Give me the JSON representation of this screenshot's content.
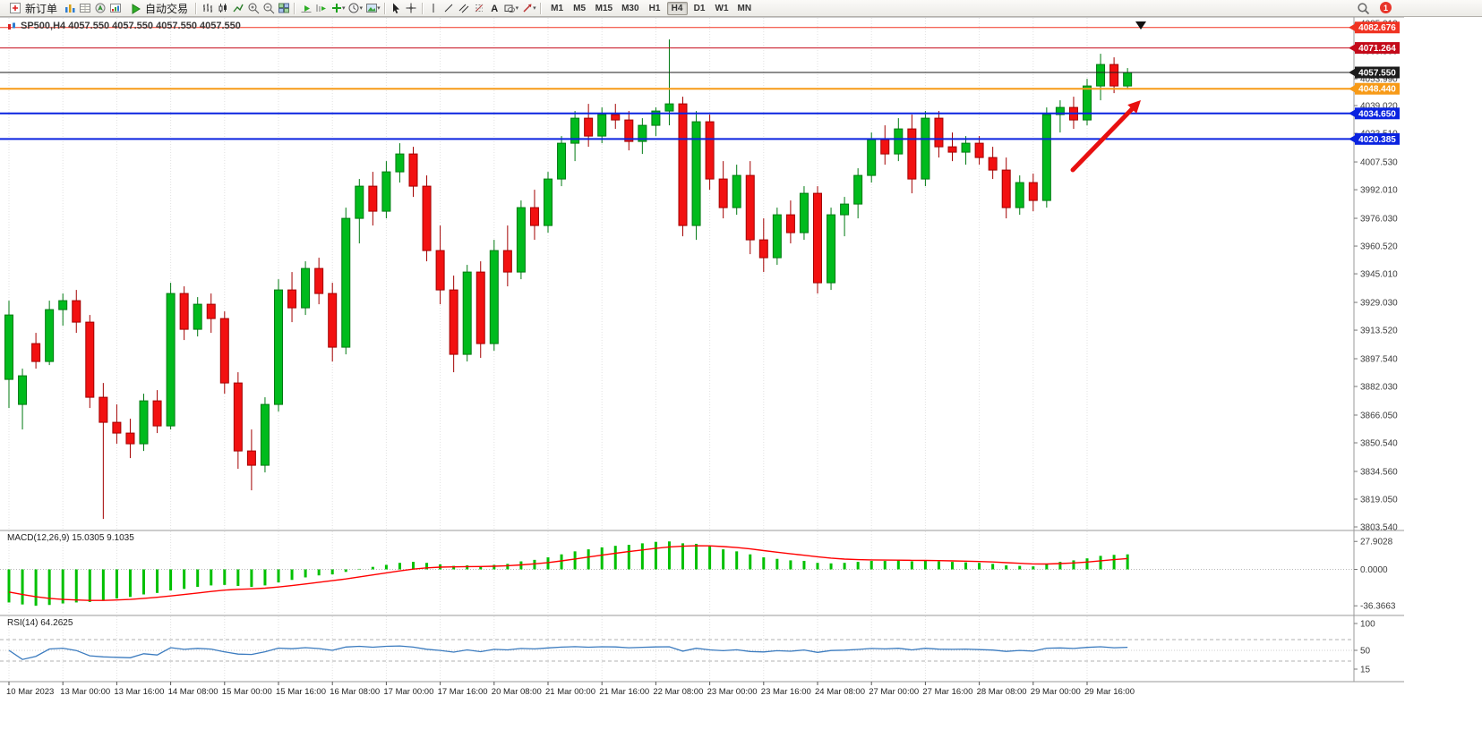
{
  "toolbar": {
    "new_order_label": "新订单",
    "auto_trading_label": "自动交易",
    "timeframes": [
      "M1",
      "M5",
      "M15",
      "M30",
      "H1",
      "H4",
      "D1",
      "W1",
      "MN"
    ],
    "active_timeframe": "H4",
    "notification_badge": "1"
  },
  "chart_data": {
    "type": "candlestick",
    "symbol": "SP500",
    "timeframe": "H4",
    "title_line": "SP500,H4  4057.550 4057.550 4057.550 4057.550",
    "bars_per_label": 4,
    "x_labels": [
      "10 Mar 2023",
      "13 Mar 00:00",
      "13 Mar 16:00",
      "14 Mar 08:00",
      "15 Mar 00:00",
      "15 Mar 16:00",
      "16 Mar 08:00",
      "17 Mar 00:00",
      "17 Mar 16:00",
      "20 Mar 08:00",
      "21 Mar 00:00",
      "21 Mar 16:00",
      "22 Mar 08:00",
      "23 Mar 00:00",
      "23 Mar 16:00",
      "24 Mar 08:00",
      "27 Mar 00:00",
      "27 Mar 16:00",
      "28 Mar 08:00",
      "29 Mar 00:00",
      "29 Mar 16:00"
    ],
    "y_ticks": [
      "4085.010",
      "4069.500",
      "4053.990",
      "4039.020",
      "4023.510",
      "4007.530",
      "3992.010",
      "3976.030",
      "3960.520",
      "3945.010",
      "3929.030",
      "3913.520",
      "3897.540",
      "3882.030",
      "3866.050",
      "3850.540",
      "3834.560",
      "3819.050",
      "3803.540"
    ],
    "price_top": 4088.55,
    "price_bottom": 3801.55,
    "colors": {
      "up": "#00bb1d",
      "up_stroke": "#007a12",
      "down": "#f21111",
      "down_stroke": "#a30000",
      "grid": "#e2e2e2"
    },
    "levels": [
      {
        "value": "4082.676",
        "price": 4082.676,
        "color": "#f03322",
        "role": "resistance-1",
        "width": 1
      },
      {
        "value": "4071.264",
        "price": 4071.264,
        "color": "#c40a1a",
        "role": "resistance-2",
        "width": 1
      },
      {
        "value": "4057.550",
        "price": 4057.55,
        "color": "#1b1b1b",
        "role": "current-price",
        "width": 1
      },
      {
        "value": "4048.440",
        "price": 4048.44,
        "color": "#f79a17",
        "role": "pivot",
        "width": 2
      },
      {
        "value": "4034.650",
        "price": 4034.65,
        "color": "#0a23e0",
        "role": "support-1",
        "width": 2
      },
      {
        "value": "4020.385",
        "price": 4020.385,
        "color": "#0a23e0",
        "role": "support-2",
        "width": 2
      }
    ],
    "candles": [
      [
        3886,
        3930,
        3870,
        3922
      ],
      [
        3872,
        3892,
        3858,
        3888
      ],
      [
        3906,
        3912,
        3892,
        3896
      ],
      [
        3896,
        3930,
        3894,
        3925
      ],
      [
        3925,
        3934,
        3916,
        3930
      ],
      [
        3930,
        3936,
        3912,
        3918
      ],
      [
        3918,
        3922,
        3870,
        3876
      ],
      [
        3876,
        3884,
        3808,
        3862
      ],
      [
        3862,
        3872,
        3850,
        3856
      ],
      [
        3856,
        3864,
        3842,
        3850
      ],
      [
        3850,
        3878,
        3846,
        3874
      ],
      [
        3874,
        3880,
        3856,
        3860
      ],
      [
        3860,
        3940,
        3858,
        3934
      ],
      [
        3934,
        3938,
        3908,
        3914
      ],
      [
        3914,
        3932,
        3910,
        3928
      ],
      [
        3928,
        3934,
        3912,
        3920
      ],
      [
        3920,
        3924,
        3878,
        3884
      ],
      [
        3884,
        3890,
        3836,
        3846
      ],
      [
        3846,
        3858,
        3824,
        3838
      ],
      [
        3838,
        3876,
        3834,
        3872
      ],
      [
        3872,
        3942,
        3868,
        3936
      ],
      [
        3936,
        3946,
        3918,
        3926
      ],
      [
        3926,
        3952,
        3922,
        3948
      ],
      [
        3948,
        3954,
        3928,
        3934
      ],
      [
        3934,
        3940,
        3896,
        3904
      ],
      [
        3904,
        3982,
        3900,
        3976
      ],
      [
        3976,
        3998,
        3962,
        3994
      ],
      [
        3994,
        4002,
        3972,
        3980
      ],
      [
        3980,
        4008,
        3976,
        4002
      ],
      [
        4002,
        4018,
        3996,
        4012
      ],
      [
        4012,
        4016,
        3988,
        3994
      ],
      [
        3994,
        4000,
        3952,
        3958
      ],
      [
        3958,
        3972,
        3928,
        3936
      ],
      [
        3936,
        3944,
        3890,
        3900
      ],
      [
        3900,
        3950,
        3896,
        3946
      ],
      [
        3946,
        3952,
        3898,
        3906
      ],
      [
        3906,
        3964,
        3902,
        3958
      ],
      [
        3958,
        3972,
        3938,
        3946
      ],
      [
        3946,
        3986,
        3942,
        3982
      ],
      [
        3982,
        3992,
        3964,
        3972
      ],
      [
        3972,
        4002,
        3968,
        3998
      ],
      [
        3998,
        4022,
        3994,
        4018
      ],
      [
        4018,
        4036,
        4008,
        4032
      ],
      [
        4032,
        4040,
        4016,
        4022
      ],
      [
        4022,
        4038,
        4018,
        4034
      ],
      [
        4034,
        4040,
        4026,
        4031
      ],
      [
        4031,
        4036,
        4014,
        4019
      ],
      [
        4019,
        4032,
        4012,
        4028
      ],
      [
        4028,
        4038,
        4022,
        4036
      ],
      [
        4036,
        4076,
        4028,
        4040
      ],
      [
        4040,
        4044,
        3966,
        3972
      ],
      [
        3972,
        4036,
        3964,
        4030
      ],
      [
        4030,
        4034,
        3992,
        3998
      ],
      [
        3998,
        4008,
        3976,
        3982
      ],
      [
        3982,
        4006,
        3978,
        4000
      ],
      [
        4000,
        4008,
        3956,
        3964
      ],
      [
        3964,
        3976,
        3946,
        3954
      ],
      [
        3954,
        3982,
        3950,
        3978
      ],
      [
        3978,
        3986,
        3962,
        3968
      ],
      [
        3968,
        3994,
        3964,
        3990
      ],
      [
        3990,
        3994,
        3934,
        3940
      ],
      [
        3940,
        3982,
        3936,
        3978
      ],
      [
        3978,
        3988,
        3966,
        3984
      ],
      [
        3984,
        4004,
        3976,
        4000
      ],
      [
        4000,
        4024,
        3996,
        4020
      ],
      [
        4020,
        4028,
        4006,
        4012
      ],
      [
        4012,
        4032,
        4008,
        4026
      ],
      [
        4026,
        4034,
        3990,
        3998
      ],
      [
        3998,
        4036,
        3994,
        4032
      ],
      [
        4032,
        4036,
        4010,
        4016
      ],
      [
        4016,
        4024,
        4008,
        4013
      ],
      [
        4013,
        4022,
        4006,
        4018
      ],
      [
        4018,
        4022,
        4006,
        4010
      ],
      [
        4010,
        4016,
        3998,
        4003
      ],
      [
        4003,
        4010,
        3976,
        3982
      ],
      [
        3982,
        4000,
        3978,
        3996
      ],
      [
        3996,
        4001,
        3980,
        3986
      ],
      [
        3986,
        4038,
        3982,
        4034
      ],
      [
        4034,
        4042,
        4024,
        4038
      ],
      [
        4038,
        4044,
        4026,
        4031
      ],
      [
        4031,
        4054,
        4028,
        4050
      ],
      [
        4050,
        4068,
        4042,
        4062
      ],
      [
        4062,
        4066,
        4046,
        4050
      ],
      [
        4050,
        4060,
        4048,
        4057.55
      ]
    ],
    "macd": {
      "title": "MACD(12,26,9) 15.0305 9.1035",
      "ticks": [
        "27.9028",
        "0.0000",
        "-36.3663"
      ],
      "max": 27.9028,
      "min": -36.3663,
      "histogram_color": "#00c000",
      "signal_color": "#ff0000",
      "histogram": [
        -33,
        -35,
        -36.3,
        -35.5,
        -34,
        -33,
        -32.5,
        -31,
        -29,
        -27.5,
        -25,
        -23.5,
        -21,
        -19.5,
        -17.5,
        -16,
        -15.5,
        -16.5,
        -17.5,
        -16,
        -13,
        -10.5,
        -8,
        -6,
        -5,
        -2.5,
        0.5,
        2.5,
        4.5,
        6.5,
        7.5,
        6.5,
        5,
        3.5,
        4,
        3,
        4.5,
        5.5,
        8,
        9.5,
        12,
        15,
        18,
        20,
        22,
        23.5,
        24.5,
        26,
        27.5,
        27.9,
        26,
        25.5,
        23,
        20,
        18,
        15,
        12,
        10.5,
        9,
        8.5,
        6.5,
        6,
        6.5,
        7.5,
        8.5,
        8.5,
        9,
        8,
        8.5,
        8,
        7.5,
        7,
        6.5,
        5.5,
        4,
        3.5,
        3,
        5,
        7.5,
        9,
        11,
        13.5,
        14.5,
        15
      ]
    },
    "rsi": {
      "title": "RSI(14) 64.2625",
      "ticks": [
        "100",
        "50",
        "15"
      ],
      "line_color": "#3b7bbf",
      "levels": [
        70,
        50,
        30
      ]
    },
    "annotation": {
      "type": "arrow",
      "color": "#e81010"
    },
    "marker": {
      "type": "down-triangle",
      "color": "#111111"
    }
  }
}
